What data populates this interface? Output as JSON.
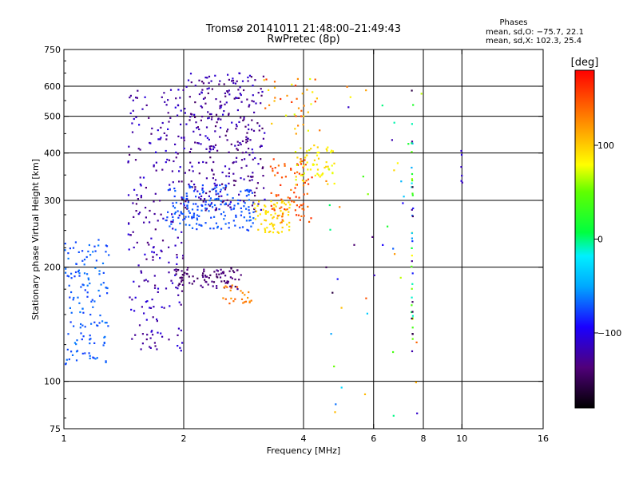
{
  "chart_data": {
    "type": "scatter",
    "title": "Tromsø 20141011 21:48:00–21:49:43",
    "subtitle": "RwPretec (8p)",
    "phase_box": {
      "heading": "Phases",
      "line_o": "mean, sd,O: −75.7, 22.1",
      "line_x": "mean, sd,X: 102.3, 25.4"
    },
    "xlabel": "Frequency [MHz]",
    "ylabel": "Stationary phase Virtual Height [km]",
    "x_scale": "log",
    "y_scale": "log",
    "xlim": [
      1,
      16
    ],
    "ylim": [
      75,
      750
    ],
    "x_ticks": [
      {
        "value": 1,
        "label": "1"
      },
      {
        "value": 2,
        "label": "2"
      },
      {
        "value": 4,
        "label": "4"
      },
      {
        "value": 6,
        "label": "6"
      },
      {
        "value": 8,
        "label": "8"
      },
      {
        "value": 10,
        "label": "10"
      },
      {
        "value": 16,
        "label": "16"
      }
    ],
    "y_ticks": [
      {
        "value": 75,
        "label": "75"
      },
      {
        "value": 100,
        "label": "100"
      },
      {
        "value": 200,
        "label": "200"
      },
      {
        "value": 300,
        "label": "300"
      },
      {
        "value": 400,
        "label": "400"
      },
      {
        "value": 500,
        "label": "500"
      },
      {
        "value": 600,
        "label": "600"
      },
      {
        "value": 750,
        "label": "750"
      }
    ],
    "grid": true,
    "grid_x": [
      2,
      4,
      6,
      8,
      10
    ],
    "grid_y": [
      100,
      200,
      300,
      400,
      500,
      600
    ],
    "colorbar": {
      "unit": "[deg]",
      "min": -180,
      "max": 180,
      "ticks": [
        {
          "value": 100,
          "label": "100"
        },
        {
          "value": 0,
          "label": "0"
        },
        {
          "value": -100,
          "label": "−100"
        }
      ]
    },
    "clusters": [
      {
        "x": [
          1.0,
          1.3
        ],
        "y": [
          110,
          240
        ],
        "phase": [
          -80,
          -60
        ],
        "count": 140
      },
      {
        "x": [
          1.45,
          2.0
        ],
        "y": [
          120,
          600
        ],
        "phase": [
          -140,
          -100
        ],
        "count": 230
      },
      {
        "x": [
          2.0,
          3.2
        ],
        "y": [
          280,
          650
        ],
        "phase": [
          -145,
          -105
        ],
        "count": 320
      },
      {
        "x": [
          1.8,
          3.0
        ],
        "y": [
          250,
          330
        ],
        "phase": [
          -80,
          -65
        ],
        "count": 170
      },
      {
        "x": [
          1.9,
          2.8
        ],
        "y": [
          175,
          200
        ],
        "phase": [
          -150,
          -130
        ],
        "count": 90
      },
      {
        "x": [
          2.5,
          3.0
        ],
        "y": [
          160,
          180
        ],
        "phase": [
          120,
          150
        ],
        "count": 25
      },
      {
        "x": [
          3.0,
          3.7
        ],
        "y": [
          245,
          300
        ],
        "phase": [
          85,
          100
        ],
        "count": 70
      },
      {
        "x": [
          3.3,
          4.2
        ],
        "y": [
          260,
          390
        ],
        "phase": [
          130,
          165
        ],
        "count": 80
      },
      {
        "x": [
          3.8,
          4.8
        ],
        "y": [
          330,
          420
        ],
        "phase": [
          70,
          100
        ],
        "count": 60
      },
      {
        "x": [
          3.0,
          4.4
        ],
        "y": [
          450,
          650
        ],
        "phase": [
          70,
          160
        ],
        "count": 40
      },
      {
        "x": [
          4.5,
          8.0
        ],
        "y": [
          80,
          600
        ],
        "phase": [
          -160,
          150
        ],
        "count": 45
      }
    ],
    "vertical_traces": [
      {
        "x": 7.5,
        "y": [
          120,
          600
        ],
        "phase": [
          -160,
          100
        ],
        "count": 45
      },
      {
        "x": 10.0,
        "y": [
          330,
          430
        ],
        "phase": [
          -120,
          -100
        ],
        "count": 6
      }
    ]
  }
}
